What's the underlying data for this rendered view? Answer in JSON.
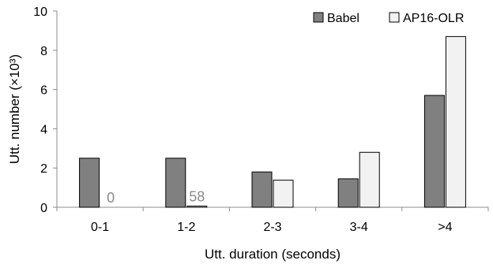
{
  "chart_data": {
    "type": "bar",
    "title": "",
    "xlabel": "Utt. duration (seconds)",
    "ylabel": "Utt. number (×10³)",
    "ylim": [
      0,
      10
    ],
    "yticks": [
      "0",
      "2",
      "4",
      "6",
      "8",
      "10"
    ],
    "categories": [
      "0-1",
      "1-2",
      "2-3",
      "3-4",
      ">4"
    ],
    "legend_position": "top-right",
    "grid": false,
    "series": [
      {
        "name": "Babel",
        "color": "#808080",
        "values": [
          2.5,
          2.5,
          1.8,
          1.45,
          5.7
        ]
      },
      {
        "name": "AP16-OLR",
        "color": "#f2f2f2",
        "values": [
          0,
          0.058,
          1.38,
          2.8,
          8.7
        ]
      }
    ],
    "annotations": [
      {
        "series": "AP16-OLR",
        "category": "0-1",
        "text": "0"
      },
      {
        "series": "AP16-OLR",
        "category": "1-2",
        "text": "58"
      }
    ]
  }
}
